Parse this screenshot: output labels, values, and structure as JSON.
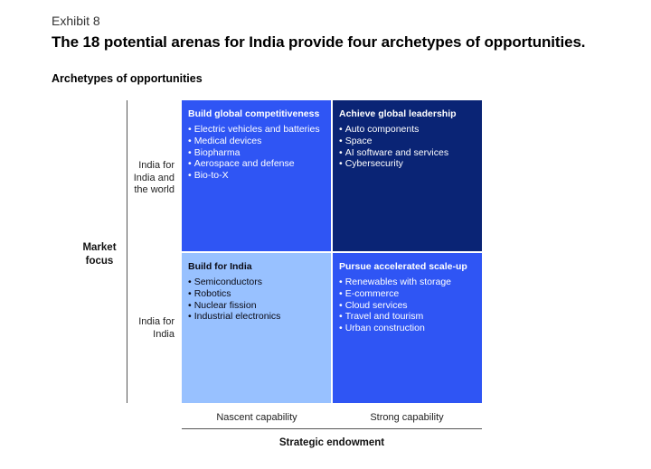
{
  "exhibit": "Exhibit 8",
  "title": "The 18 potential arenas for India provide four archetypes of opportunities.",
  "subtitle": "Archetypes of opportunities",
  "y_axis": {
    "title": "Market focus",
    "title_line1": "Market",
    "title_line2": "focus",
    "top_label": [
      "India for",
      "India and",
      "the world"
    ],
    "bottom_label": [
      "India for",
      "India"
    ]
  },
  "x_axis": {
    "title": "Strategic endowment",
    "left_label": "Nascent capability",
    "right_label": "Strong capability"
  },
  "quadrants": {
    "top_left": {
      "title": "Build global competitiveness",
      "color": "#2f55f4",
      "items": [
        "Electric vehicles and batteries",
        "Medical devices",
        "Biopharma",
        "Aerospace and defense",
        "Bio-to-X"
      ]
    },
    "top_right": {
      "title": "Achieve global leadership",
      "color": "#0a2475",
      "items": [
        "Auto components",
        "Space",
        "AI software and services",
        "Cybersecurity"
      ]
    },
    "bottom_left": {
      "title": "Build for India",
      "color": "#98c1ff",
      "items": [
        "Semiconductors",
        "Robotics",
        "Nuclear fission",
        "Industrial electronics"
      ]
    },
    "bottom_right": {
      "title": "Pursue accelerated scale-up",
      "color": "#2f55f4",
      "items": [
        "Renewables with storage",
        "E-commerce",
        "Cloud services",
        "Travel and tourism",
        "Urban construction"
      ]
    }
  }
}
